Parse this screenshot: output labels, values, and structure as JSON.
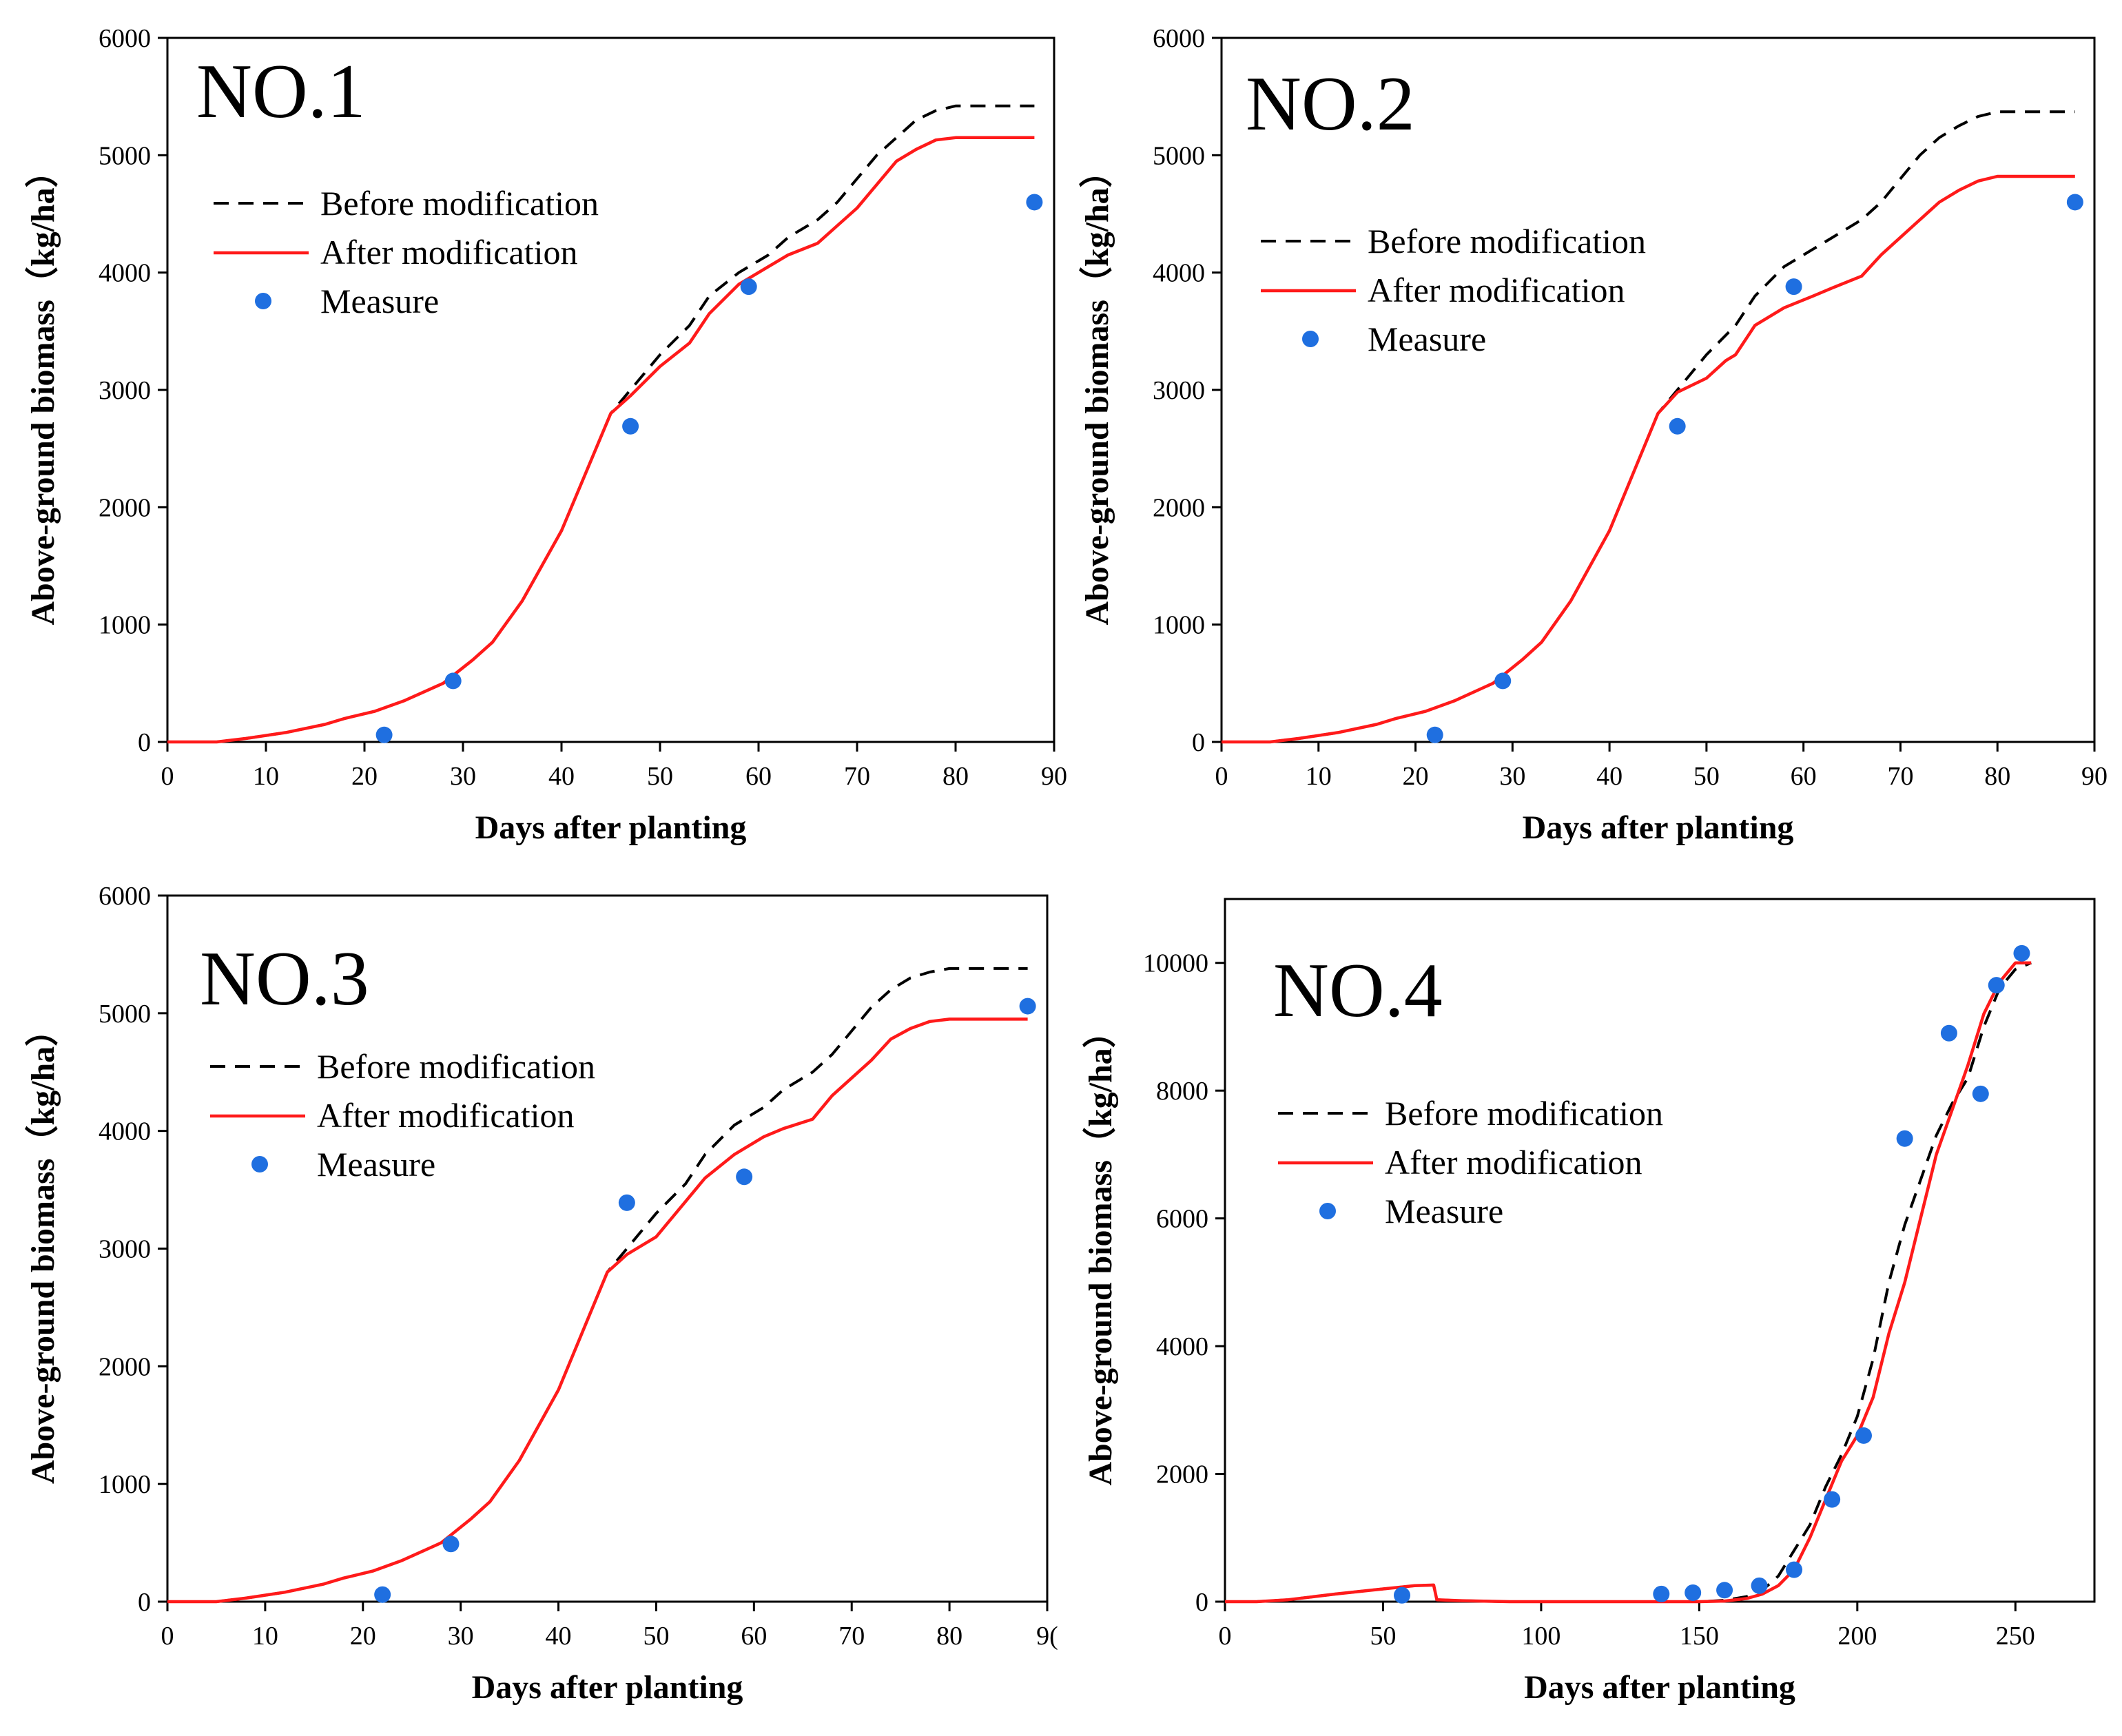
{
  "legend": {
    "before": "Before modification",
    "after": "After modification",
    "measure": "Measure"
  },
  "colors": {
    "before": "#000000",
    "after": "#ff1a1a",
    "measure": "#1f6fe0"
  },
  "chart_data": [
    {
      "type": "line",
      "panel_label": "NO.1",
      "xlabel": "Days after planting",
      "ylabel": "Above-ground biomass（kg/ha）",
      "xlim": [
        0,
        90
      ],
      "ylim": [
        0,
        6000
      ],
      "xticks": [
        "0",
        "10",
        "20",
        "30",
        "40",
        "50",
        "60",
        "70",
        "80",
        "90"
      ],
      "yticks": [
        "0",
        "1000",
        "2000",
        "3000",
        "4000",
        "5000",
        "6000"
      ],
      "legend_position": "upper-left",
      "series": [
        {
          "name": "Before modification",
          "style": "dashed",
          "x": [
            0,
            5,
            8,
            12,
            16,
            18,
            21,
            24,
            28,
            31,
            33,
            36,
            40,
            43,
            45,
            47,
            50,
            53,
            55,
            58,
            61,
            63,
            66,
            68,
            70,
            72,
            74,
            76,
            78,
            80,
            88
          ],
          "y": [
            0,
            0,
            30,
            80,
            150,
            200,
            260,
            350,
            500,
            700,
            850,
            1200,
            1800,
            2400,
            2800,
            3000,
            3300,
            3550,
            3800,
            4000,
            4150,
            4300,
            4450,
            4600,
            4800,
            5000,
            5150,
            5300,
            5380,
            5420,
            5420
          ]
        },
        {
          "name": "After modification",
          "style": "solid",
          "x": [
            0,
            5,
            8,
            12,
            16,
            18,
            21,
            24,
            28,
            31,
            33,
            36,
            40,
            43,
            45,
            47,
            50,
            53,
            55,
            58,
            61,
            63,
            66,
            68,
            70,
            72,
            74,
            76,
            78,
            80,
            88
          ],
          "y": [
            0,
            0,
            30,
            80,
            150,
            200,
            260,
            350,
            500,
            700,
            850,
            1200,
            1800,
            2400,
            2800,
            2950,
            3200,
            3400,
            3650,
            3900,
            4050,
            4150,
            4250,
            4400,
            4550,
            4750,
            4950,
            5050,
            5130,
            5150,
            5150
          ]
        },
        {
          "name": "Measure",
          "style": "marker",
          "x": [
            22,
            29,
            47,
            59,
            88
          ],
          "y": [
            60,
            520,
            2690,
            3880,
            4600
          ]
        }
      ]
    },
    {
      "type": "line",
      "panel_label": "NO.2",
      "xlabel": "Days after planting",
      "ylabel": "Above-ground biomass（kg/ha）",
      "xlim": [
        0,
        90
      ],
      "ylim": [
        0,
        6000
      ],
      "xticks": [
        "0",
        "10",
        "20",
        "30",
        "40",
        "50",
        "60",
        "70",
        "80",
        "90"
      ],
      "yticks": [
        "0",
        "1000",
        "2000",
        "3000",
        "4000",
        "5000",
        "6000"
      ],
      "legend_position": "upper-left",
      "series": [
        {
          "name": "Before modification",
          "style": "dashed",
          "x": [
            0,
            5,
            8,
            12,
            16,
            18,
            21,
            24,
            28,
            31,
            33,
            36,
            40,
            43,
            45,
            47,
            50,
            53,
            55,
            58,
            61,
            63,
            66,
            68,
            70,
            72,
            74,
            76,
            78,
            80,
            88
          ],
          "y": [
            0,
            0,
            30,
            80,
            150,
            200,
            260,
            350,
            500,
            700,
            850,
            1200,
            1800,
            2400,
            2800,
            3000,
            3300,
            3550,
            3800,
            4050,
            4200,
            4300,
            4450,
            4600,
            4800,
            5000,
            5150,
            5250,
            5330,
            5370,
            5370
          ]
        },
        {
          "name": "After modification",
          "style": "solid",
          "x": [
            0,
            5,
            8,
            12,
            16,
            18,
            21,
            24,
            28,
            31,
            33,
            36,
            40,
            43,
            45,
            47,
            50,
            52,
            53,
            55,
            58,
            61,
            63,
            66,
            68,
            70,
            72,
            74,
            76,
            78,
            80,
            88
          ],
          "y": [
            0,
            0,
            30,
            80,
            150,
            200,
            260,
            350,
            500,
            700,
            850,
            1200,
            1800,
            2400,
            2800,
            2980,
            3100,
            3250,
            3300,
            3550,
            3700,
            3800,
            3870,
            3970,
            4150,
            4300,
            4450,
            4600,
            4700,
            4780,
            4820,
            4820
          ]
        },
        {
          "name": "Measure",
          "style": "marker",
          "x": [
            22,
            29,
            47,
            59,
            88
          ],
          "y": [
            60,
            520,
            2690,
            3880,
            4600
          ]
        }
      ]
    },
    {
      "type": "line",
      "panel_label": "NO.3",
      "xlabel": "Days after planting",
      "ylabel": "Above-ground biomass（kg/ha）",
      "xlim": [
        0,
        90
      ],
      "ylim": [
        0,
        6000
      ],
      "xticks": [
        "0",
        "10",
        "20",
        "30",
        "40",
        "50",
        "60",
        "70",
        "80",
        "9("
      ],
      "yticks": [
        "0",
        "1000",
        "2000",
        "3000",
        "4000",
        "5000",
        "6000"
      ],
      "legend_position": "upper-left",
      "series": [
        {
          "name": "Before modification",
          "style": "dashed",
          "x": [
            0,
            5,
            8,
            12,
            16,
            18,
            21,
            24,
            28,
            31,
            33,
            36,
            40,
            43,
            45,
            47,
            50,
            53,
            55,
            58,
            61,
            63,
            66,
            68,
            70,
            72,
            74,
            76,
            78,
            80,
            88
          ],
          "y": [
            0,
            0,
            30,
            80,
            150,
            200,
            260,
            350,
            500,
            700,
            850,
            1200,
            1800,
            2400,
            2800,
            3000,
            3300,
            3550,
            3800,
            4050,
            4200,
            4350,
            4500,
            4650,
            4850,
            5050,
            5200,
            5300,
            5350,
            5380,
            5380
          ]
        },
        {
          "name": "After modification",
          "style": "solid",
          "x": [
            0,
            5,
            8,
            12,
            16,
            18,
            21,
            24,
            28,
            31,
            33,
            36,
            40,
            43,
            45,
            47,
            50,
            53,
            55,
            58,
            61,
            63,
            66,
            68,
            70,
            72,
            74,
            76,
            78,
            80,
            88
          ],
          "y": [
            0,
            0,
            30,
            80,
            150,
            200,
            260,
            350,
            500,
            700,
            850,
            1200,
            1800,
            2400,
            2800,
            2950,
            3100,
            3400,
            3600,
            3800,
            3950,
            4020,
            4100,
            4300,
            4450,
            4600,
            4780,
            4870,
            4930,
            4950,
            4950
          ]
        },
        {
          "name": "Measure",
          "style": "marker",
          "x": [
            22,
            29,
            47,
            59,
            88
          ],
          "y": [
            60,
            490,
            3390,
            3610,
            5060
          ]
        }
      ]
    },
    {
      "type": "line",
      "panel_label": "NO.4",
      "xlabel": "Days after planting",
      "ylabel": "Above-ground biomass（kg/ha）",
      "xlim": [
        0,
        275
      ],
      "ylim": [
        0,
        11000
      ],
      "xticks": [
        "0",
        "50",
        "100",
        "150",
        "200",
        "250"
      ],
      "yticks": [
        "0",
        "2000",
        "4000",
        "6000",
        "8000",
        "10000"
      ],
      "legend_position": "upper-left",
      "series": [
        {
          "name": "Before modification",
          "style": "dashed",
          "x": [
            0,
            10,
            20,
            35,
            50,
            60,
            66,
            67,
            75,
            90,
            100,
            120,
            140,
            150,
            158,
            165,
            170,
            175,
            180,
            185,
            190,
            195,
            200,
            205,
            210,
            215,
            220,
            225,
            230,
            235,
            240,
            245,
            250,
            255
          ],
          "y": [
            0,
            0,
            30,
            120,
            200,
            250,
            260,
            30,
            15,
            0,
            0,
            0,
            0,
            0,
            20,
            80,
            180,
            400,
            800,
            1200,
            1800,
            2300,
            2900,
            3800,
            5000,
            5900,
            6600,
            7300,
            7800,
            8200,
            9000,
            9600,
            9900,
            10000
          ]
        },
        {
          "name": "After modification",
          "style": "solid",
          "x": [
            0,
            10,
            20,
            35,
            50,
            60,
            66,
            67,
            75,
            90,
            100,
            120,
            140,
            150,
            158,
            165,
            170,
            175,
            180,
            185,
            190,
            195,
            200,
            205,
            210,
            215,
            220,
            225,
            230,
            235,
            240,
            245,
            250,
            255
          ],
          "y": [
            0,
            0,
            30,
            120,
            200,
            250,
            260,
            30,
            15,
            0,
            0,
            0,
            0,
            0,
            10,
            50,
            120,
            250,
            500,
            1000,
            1600,
            2200,
            2600,
            3200,
            4200,
            5000,
            6000,
            7000,
            7700,
            8400,
            9200,
            9700,
            10000,
            10000
          ]
        },
        {
          "name": "Measure",
          "style": "marker",
          "x": [
            56,
            138,
            148,
            158,
            169,
            180,
            192,
            202,
            215,
            229,
            239,
            244,
            252
          ],
          "y": [
            100,
            120,
            140,
            180,
            250,
            500,
            1600,
            2600,
            7250,
            8900,
            7950,
            9650,
            10150
          ]
        }
      ]
    }
  ]
}
